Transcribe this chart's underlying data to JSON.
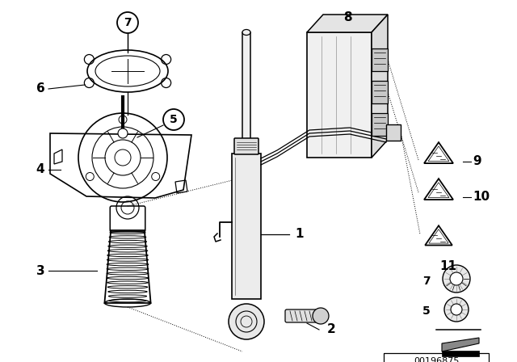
{
  "bg_color": "#ffffff",
  "line_color": "#000000",
  "text_color": "#000000",
  "part_number": "00196875",
  "fig_w": 6.4,
  "fig_h": 4.48,
  "dpi": 100
}
